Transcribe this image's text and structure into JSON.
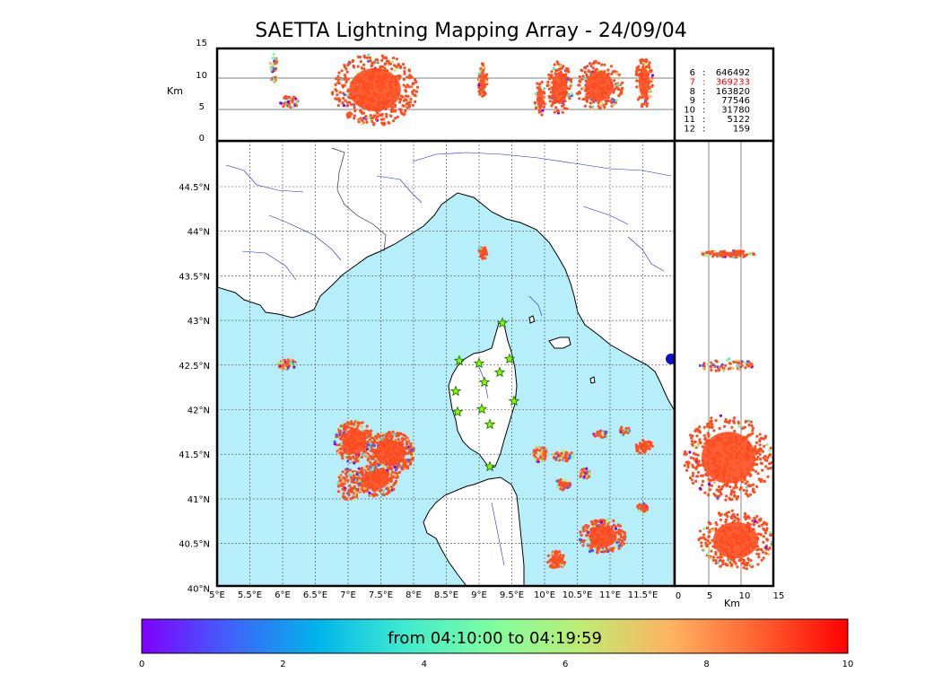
{
  "title": "SAETTA Lightning Mapping Array - 24/09/04",
  "side_axis_unit": "Km",
  "top_panel": {
    "y_ticks": [
      "15",
      "10",
      "5",
      "0"
    ],
    "y_label": "Km"
  },
  "right_panel": {
    "x_ticks": [
      "0",
      "5",
      "10",
      "15"
    ],
    "x_label": "Km"
  },
  "map": {
    "lon_ticks": [
      "5°E",
      "5.5°E",
      "6°E",
      "6.5°E",
      "7°E",
      "7.5°E",
      "8°E",
      "8.5°E",
      "9°E",
      "9.5°E",
      "10°E",
      "10.5°E",
      "11°E",
      "11.5°E"
    ],
    "lat_ticks": [
      "44.5°N",
      "44°N",
      "43.5°N",
      "43°N",
      "42.5°N",
      "42°N",
      "41.5°N",
      "41°N",
      "40.5°N",
      "40°N"
    ],
    "colors": {
      "sea": "#b6eefa",
      "land": "#ffffff",
      "river": "#2222dd",
      "station": "#7cfc00"
    }
  },
  "counts_table": [
    {
      "stations": "6",
      "count": "646492",
      "color": "#000000"
    },
    {
      "stations": "7",
      "count": "369233",
      "color": "#ff0000"
    },
    {
      "stations": "8",
      "count": "163820",
      "color": "#000000"
    },
    {
      "stations": "9",
      "count": "77546",
      "color": "#000000"
    },
    {
      "stations": "10",
      "count": "31780",
      "color": "#000000"
    },
    {
      "stations": "11",
      "count": "5122",
      "color": "#000000"
    },
    {
      "stations": "12",
      "count": "159",
      "color": "#000000"
    }
  ],
  "colorbar": {
    "label": "from 04:10:00 to 04:19:59",
    "ticks": [
      "0",
      "2",
      "4",
      "6",
      "8",
      "10"
    ],
    "colors": [
      "#7f00ff",
      "#4062fa",
      "#00b5eb",
      "#40eccf",
      "#80fe9f",
      "#c0eb72",
      "#ffb360",
      "#ff6030",
      "#ff0000"
    ]
  }
}
